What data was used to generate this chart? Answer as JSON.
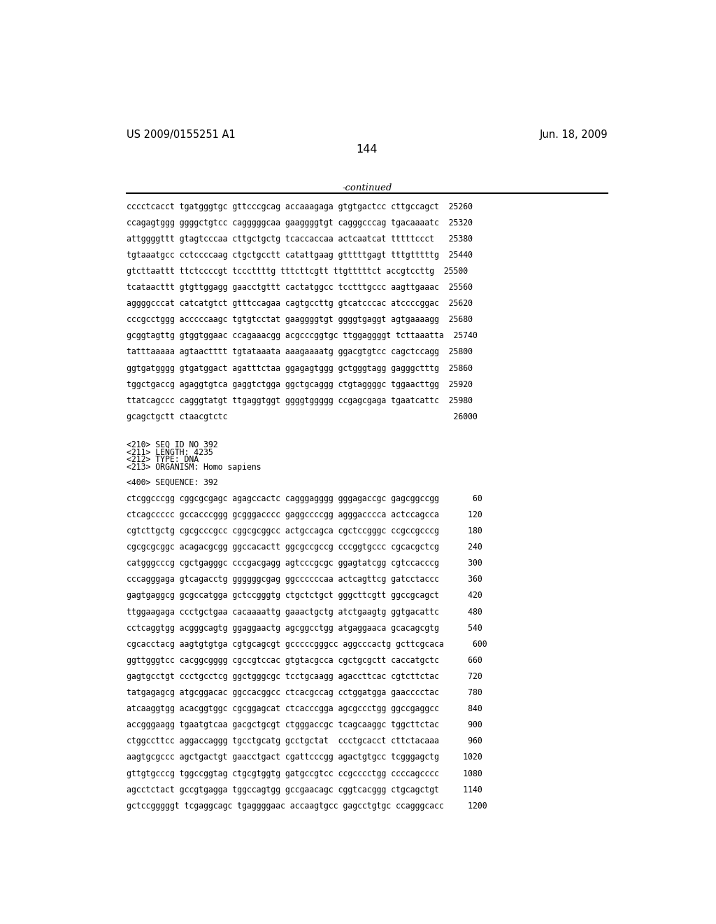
{
  "header_left": "US 2009/0155251 A1",
  "header_right": "Jun. 18, 2009",
  "page_number": "144",
  "continued_label": "-continued",
  "background_color": "#ffffff",
  "text_color": "#000000",
  "section1_lines": [
    "cccctcacct tgatgggtgc gttcccgcag accaaagaga gtgtgactcc cttgccagct  25260",
    "ccagagtggg ggggctgtcc cagggggcaa gaaggggtgt cagggcccag tgacaaaatc  25320",
    "attggggttt gtagtcccaa cttgctgctg tcaccaccaa actcaatcat tttttccct   25380",
    "tgtaaatgcc cctccccaag ctgctgcctt catattgaag gtttttgagt tttgtttttg  25440",
    "gtcttaattt ttctccccgt tcccttttg tttcttcgtt ttgtttttct accgtccttg  25500",
    "tcataacttt gtgttggagg gaacctgttt cactatggcc tcctttgccc aagttgaaac  25560",
    "aggggcccat catcatgtct gtttccagaa cagtgccttg gtcatcccac atccccggac  25620",
    "cccgcctggg acccccaagc tgtgtcctat gaaggggtgt ggggtgaggt agtgaaaagg  25680",
    "gcggtagttg gtggtggaac ccagaaacgg acgcccggtgc ttggaggggt tcttaaatta  25740",
    "tatttaaaaa agtaactttt tgtataaata aaagaaaatg ggacgtgtcc cagctccagg  25800",
    "ggtgatgggg gtgatggact agatttctaa ggagagtggg gctgggtagg gagggctttg  25860",
    "tggctgaccg agaggtgtca gaggtctgga ggctgcaggg ctgtaggggc tggaacttgg  25920",
    "ttatcagccc cagggtatgt ttgaggtggt ggggtggggg ccgagcgaga tgaatcattc  25980",
    "gcagctgctt ctaacgtctc                                               26000"
  ],
  "section2_header_lines": [
    "<210> SEQ ID NO 392",
    "<211> LENGTH: 4235",
    "<212> TYPE: DNA",
    "<213> ORGANISM: Homo sapiens"
  ],
  "section2_seq_header": "<400> SEQUENCE: 392",
  "section2_lines": [
    "ctcggcccgg cggcgcgagc agagccactc cagggagggg gggagaccgc gagcggccgg       60",
    "ctcagccccc gccacccggg gcgggacccc gaggccccgg agggacccca actccagcca      120",
    "cgtcttgctg cgcgcccgcc cggcgcggcc actgccagca cgctccgggc ccgccgcccg      180",
    "cgcgcgcggc acagacgcgg ggccacactt ggcgccgccg cccggtgccc cgcacgctcg      240",
    "catgggcccg cgctgagggc cccgacgagg agtcccgcgc ggagtatcgg cgtccacccg      300",
    "cccagggaga gtcagacctg ggggggcgag ggccccccaa actcagttcg gatcctaccc      360",
    "gagtgaggcg gcgccatgga gctccgggtg ctgctctgct gggcttcgtt ggccgcagct      420",
    "ttggaagaga ccctgctgaa cacaaaattg gaaactgctg atctgaagtg ggtgacattc      480",
    "cctcaggtgg acgggcagtg ggaggaactg agcggcctgg atgaggaaca gcacagcgtg      540",
    "cgcacctacg aagtgtgtga cgtgcagcgt gcccccgggcc aggcccactg gcttcgcaca      600",
    "ggttgggtcc cacggcgggg cgccgtccac gtgtacgcca cgctgcgctt caccatgctc      660",
    "gagtgcctgt ccctgcctcg ggctgggcgc tcctgcaagg agaccttcac cgtcttctac      720",
    "tatgagagcg atgcggacac ggccacggcc ctcacgccag cctggatgga gaacccctac      780",
    "atcaaggtgg acacggtggc cgcggagcat ctcacccgga agcgccctgg ggccgaggcc      840",
    "accgggaagg tgaatgtcaa gacgctgcgt ctgggaccgc tcagcaaggc tggcttctac      900",
    "ctggccttcc aggaccaggg tgcctgcatg gcctgctat  ccctgcacct cttctacaaa      960",
    "aagtgcgccc agctgactgt gaacctgact cgattcccgg agactgtgcc tcgggagctg     1020",
    "gttgtgcccg tggccggtag ctgcgtggtg gatgccgtcc ccgcccctgg ccccagcccc     1080",
    "agcctctact gccgtgagga tggccagtgg gccgaacagc cggtcacggg ctgcagctgt     1140",
    "gctccgggggt tcgaggcagc tgaggggaac accaagtgcc gagcctgtgc ccagggcacc     1200"
  ]
}
